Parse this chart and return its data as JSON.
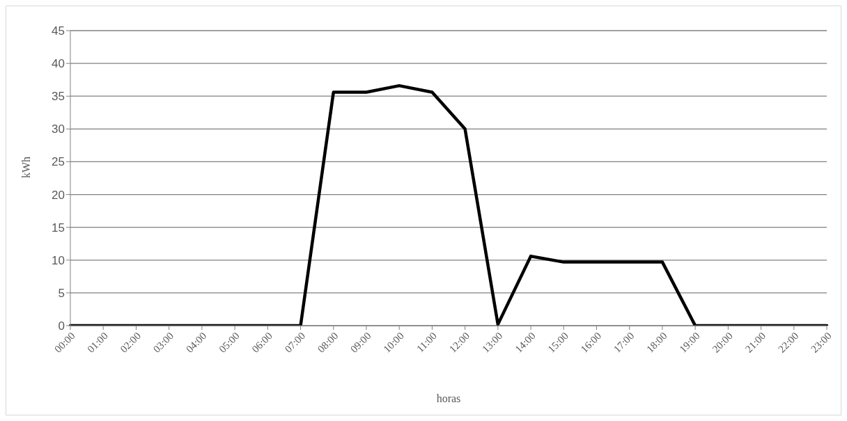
{
  "chart_data": {
    "type": "line",
    "xlabel": "horas",
    "ylabel": "kWh",
    "categories": [
      "00:00",
      "01:00",
      "02:00",
      "03:00",
      "04:00",
      "05:00",
      "06:00",
      "07:00",
      "08:00",
      "09:00",
      "10:00",
      "11:00",
      "12:00",
      "13:00",
      "14:00",
      "15:00",
      "16:00",
      "17:00",
      "18:00",
      "19:00",
      "20:00",
      "21:00",
      "22:00",
      "23:00"
    ],
    "series": [
      {
        "color": "#000000",
        "values": [
          0,
          0,
          0,
          0,
          0,
          0,
          0,
          0,
          35.6,
          35.6,
          36.6,
          35.6,
          30,
          0.2,
          10.6,
          9.7,
          9.7,
          9.7,
          9.7,
          0,
          0,
          0,
          0,
          0
        ]
      }
    ],
    "ylim": [
      0,
      45
    ],
    "yticks": [
      0,
      5,
      10,
      15,
      20,
      25,
      30,
      35,
      40,
      45
    ],
    "grid": "y",
    "legend": false,
    "marker": "none",
    "line_style": "solid"
  }
}
